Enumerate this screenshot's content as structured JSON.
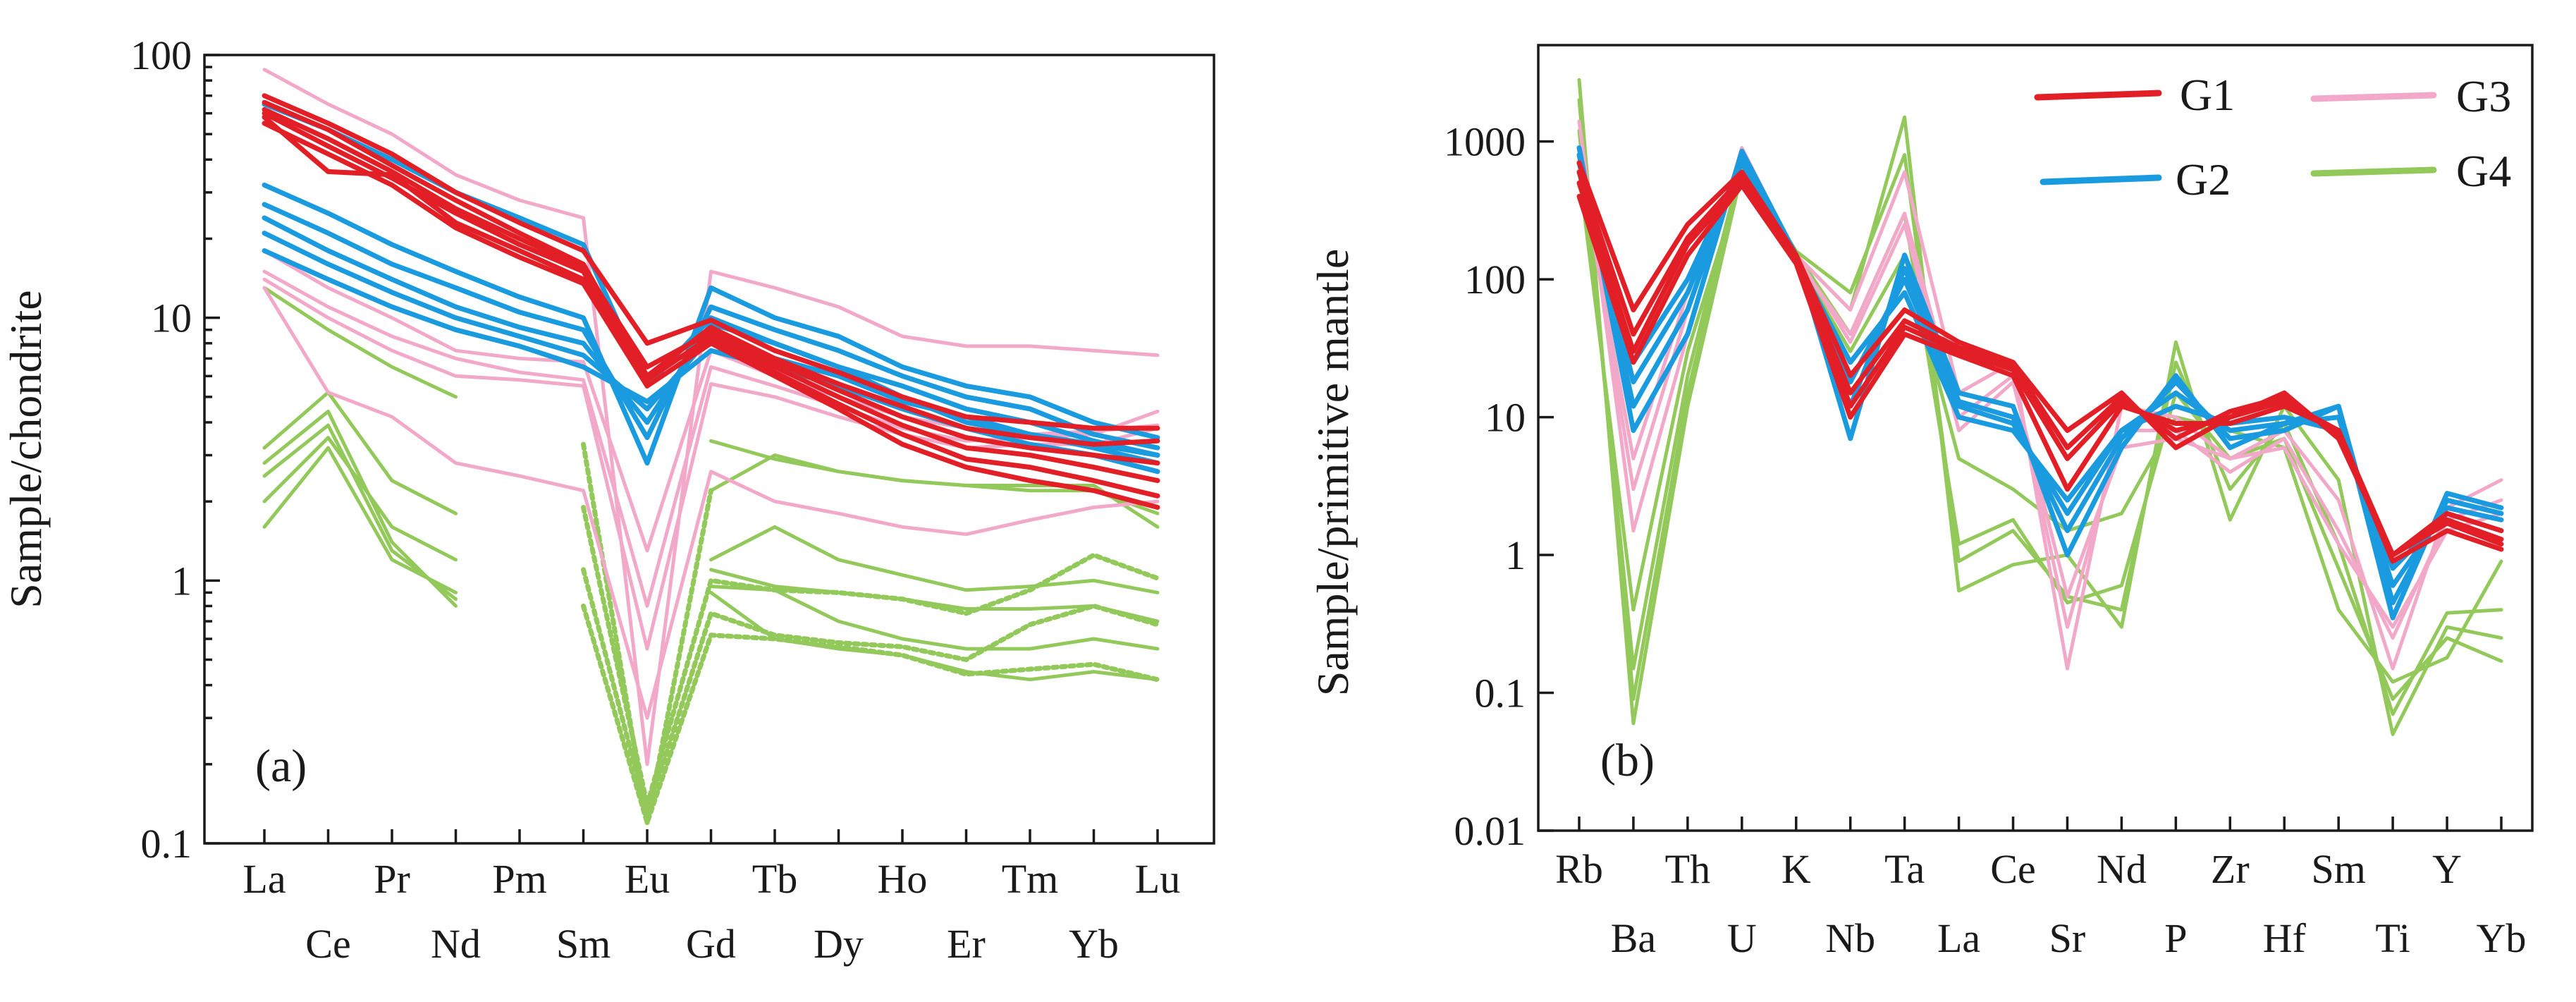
{
  "colors": {
    "G1": "#e21f26",
    "G2": "#1a9be0",
    "G3": "#f2a8c8",
    "G4": "#93c95a",
    "axis": "#1a1a1a"
  },
  "legend": [
    {
      "name": "G1",
      "color": "#e21f26"
    },
    {
      "name": "G2",
      "color": "#1a9be0"
    },
    {
      "name": "G3",
      "color": "#f2a8c8"
    },
    {
      "name": "G4",
      "color": "#93c95a"
    }
  ],
  "chart_data": [
    {
      "type": "line",
      "panel": "(a)",
      "ylabel": "Sample/chondrite",
      "xlabel": "",
      "yscale": "log",
      "ylim": [
        0.1,
        100
      ],
      "yticks": [
        {
          "value": 100,
          "label": "100"
        },
        {
          "value": 10,
          "label": "10"
        },
        {
          "value": 1,
          "label": "1"
        },
        {
          "value": 0.1,
          "label": "0.1"
        }
      ],
      "categories": [
        "La",
        "Ce",
        "Pr",
        "Nd",
        "Pm",
        "Sm",
        "Eu",
        "Gd",
        "Tb",
        "Dy",
        "Ho",
        "Er",
        "Tm",
        "Yb",
        "Lu"
      ],
      "series": [
        {
          "name": "G4",
          "group": "G4",
          "values": [
            13,
            9,
            6.5,
            5.0,
            null,
            3.7,
            null,
            3.4,
            2.9,
            2.6,
            2.4,
            2.3,
            2.3,
            2.3,
            1.6
          ]
        },
        {
          "name": "G4",
          "group": "G4",
          "values": [
            3.2,
            5.2,
            2.4,
            1.8,
            null,
            2.0,
            null,
            2.2,
            3.0,
            2.6,
            2.4,
            2.3,
            2.2,
            2.2,
            1.8
          ]
        },
        {
          "name": "G4",
          "group": "G4",
          "values": [
            2.0,
            3.5,
            1.6,
            1.2,
            null,
            1.15,
            null,
            1.2,
            1.6,
            1.2,
            1.05,
            0.92,
            0.95,
            1.0,
            0.9
          ]
        },
        {
          "name": "G4",
          "group": "G4",
          "values": [
            1.6,
            3.2,
            1.2,
            0.9,
            null,
            0.9,
            null,
            1.1,
            0.95,
            0.9,
            0.85,
            0.78,
            0.78,
            0.8,
            0.7
          ]
        },
        {
          "name": "G4",
          "group": "G4",
          "values": [
            2.8,
            4.4,
            1.4,
            0.8,
            null,
            0.8,
            null,
            0.95,
            0.92,
            0.7,
            0.6,
            0.55,
            0.55,
            0.6,
            0.55
          ]
        },
        {
          "name": "G4",
          "group": "G4",
          "values": [
            2.5,
            3.9,
            1.3,
            0.85,
            null,
            0.85,
            null,
            0.9,
            0.6,
            0.55,
            0.52,
            0.45,
            0.42,
            0.45,
            0.42
          ]
        },
        {
          "name": "G4",
          "group": "G4",
          "dashed": true,
          "values": [
            null,
            null,
            null,
            null,
            null,
            3.3,
            0.12,
            2.2,
            null,
            null,
            null,
            null,
            null,
            null,
            null
          ]
        },
        {
          "name": "G4",
          "group": "G4",
          "dashed": true,
          "values": [
            null,
            null,
            null,
            null,
            null,
            1.9,
            0.14,
            1.0,
            0.92,
            0.9,
            0.85,
            0.75,
            0.92,
            1.25,
            1.02
          ]
        },
        {
          "name": "G4",
          "group": "G4",
          "dashed": true,
          "values": [
            null,
            null,
            null,
            null,
            null,
            1.1,
            0.13,
            0.75,
            0.62,
            0.58,
            0.56,
            0.5,
            0.68,
            0.8,
            0.68
          ]
        },
        {
          "name": "G4",
          "group": "G4",
          "dashed": true,
          "values": [
            null,
            null,
            null,
            null,
            null,
            0.8,
            0.12,
            0.62,
            0.6,
            0.56,
            0.52,
            0.44,
            0.46,
            0.48,
            0.42
          ]
        },
        {
          "name": "G3",
          "group": "G3",
          "values": [
            88,
            65,
            50,
            35,
            28,
            24,
            0.2,
            15,
            13,
            11,
            8.5,
            7.8,
            7.8,
            7.5,
            7.2
          ]
        },
        {
          "name": "G3",
          "group": "G3",
          "values": [
            18,
            13,
            10,
            7.5,
            7.0,
            6.8,
            1.3,
            7.5,
            6.0,
            5.0,
            4.2,
            3.8,
            3.6,
            3.7,
            3.9
          ]
        },
        {
          "name": "G3",
          "group": "G3",
          "values": [
            15,
            11,
            8.5,
            7.0,
            6.2,
            5.8,
            0.8,
            6.5,
            5.5,
            4.6,
            3.8,
            3.4,
            3.5,
            3.6,
            4.4
          ]
        },
        {
          "name": "G3",
          "group": "G3",
          "values": [
            14,
            10,
            7.5,
            6.0,
            5.8,
            5.5,
            0.55,
            5.6,
            5.0,
            4.2,
            3.6,
            3.2,
            3.3,
            3.3,
            3.8
          ]
        },
        {
          "name": "G3",
          "group": "G3",
          "values": [
            13,
            5.2,
            4.2,
            2.8,
            2.5,
            2.2,
            0.3,
            2.6,
            2.0,
            1.8,
            1.6,
            1.5,
            1.7,
            1.9,
            2.0
          ]
        },
        {
          "name": "G2",
          "group": "G2",
          "values": [
            32,
            25,
            19,
            15,
            12,
            10,
            2.8,
            13,
            10,
            8.5,
            6.5,
            5.5,
            5.0,
            4.0,
            3.5
          ]
        },
        {
          "name": "G2",
          "group": "G2",
          "values": [
            27,
            21,
            16,
            13,
            10.5,
            9.0,
            3.5,
            11,
            9,
            7.5,
            6.0,
            5.0,
            4.5,
            3.6,
            3.2
          ]
        },
        {
          "name": "G2",
          "group": "G2",
          "values": [
            24,
            18,
            14,
            11,
            9.2,
            8.0,
            4.0,
            9.5,
            8,
            6.5,
            5.5,
            4.5,
            4.0,
            3.4,
            3.0
          ]
        },
        {
          "name": "G2",
          "group": "G2",
          "values": [
            21,
            16,
            12.5,
            10,
            8.5,
            7.2,
            4.5,
            8.5,
            7,
            6.0,
            4.8,
            4.2,
            3.6,
            3.2,
            2.8
          ]
        },
        {
          "name": "G2",
          "group": "G2",
          "values": [
            18,
            14,
            11,
            9,
            7.8,
            6.5,
            4.8,
            7.5,
            6.5,
            5.5,
            4.5,
            3.8,
            3.3,
            3.0,
            2.6
          ]
        },
        {
          "name": "G2",
          "group": "G2",
          "values": [
            65,
            52,
            40,
            30,
            24,
            19,
            5.5,
            10,
            8,
            6.5,
            5.0,
            4.0,
            3.6,
            3.3,
            3.0
          ]
        },
        {
          "name": "G1",
          "group": "G1",
          "values": [
            70,
            55,
            42,
            30,
            23,
            18,
            8.0,
            9.8,
            7.5,
            6.2,
            5.0,
            4.2,
            4.0,
            3.8,
            3.8
          ]
        },
        {
          "name": "G1",
          "group": "G1",
          "values": [
            66,
            52,
            38,
            28,
            21,
            16,
            6.0,
            9.2,
            7.0,
            5.6,
            4.6,
            3.8,
            3.5,
            3.3,
            3.4
          ]
        },
        {
          "name": "G1",
          "group": "G1",
          "values": [
            62,
            48,
            36,
            26,
            20,
            15.5,
            6.5,
            8.8,
            6.8,
            5.3,
            4.2,
            3.5,
            3.2,
            3.0,
            2.8
          ]
        },
        {
          "name": "G1",
          "group": "G1",
          "values": [
            60,
            45,
            34,
            25,
            19,
            15,
            5.8,
            8.5,
            6.5,
            5.0,
            3.9,
            3.2,
            3.0,
            2.7,
            2.4
          ]
        },
        {
          "name": "G1",
          "group": "G1",
          "values": [
            58,
            36,
            35,
            23,
            18,
            14,
            6.0,
            8.2,
            6.2,
            4.7,
            3.6,
            2.9,
            2.7,
            2.4,
            2.1
          ]
        },
        {
          "name": "G1",
          "group": "G1",
          "values": [
            55,
            42,
            32,
            22,
            17,
            13.5,
            5.5,
            8.0,
            6.0,
            4.5,
            3.3,
            2.7,
            2.4,
            2.2,
            1.9
          ]
        }
      ]
    },
    {
      "type": "line",
      "panel": "(b)",
      "ylabel": "Sample/primitive mantle",
      "xlabel": "",
      "yscale": "log",
      "ylim": [
        0.01,
        5000
      ],
      "yticks": [
        {
          "value": 1000,
          "label": "1000"
        },
        {
          "value": 100,
          "label": "100"
        },
        {
          "value": 10,
          "label": "10"
        },
        {
          "value": 1,
          "label": "1"
        },
        {
          "value": 0.1,
          "label": "0.1"
        },
        {
          "value": 0.01,
          "label": "0.01"
        }
      ],
      "categories": [
        "Rb",
        "Ba",
        "Th",
        "U",
        "K",
        "Nb",
        "Ta",
        "La",
        "Ce",
        "Sr",
        "Nd",
        "P",
        "Zr",
        "Hf",
        "Sm",
        "Ti",
        "Y",
        "Yb"
      ],
      "series": [
        {
          "name": "G4",
          "group": "G4",
          "values": [
            2800,
            0.06,
            12,
            600,
            150,
            60,
            1500,
            0.55,
            0.85,
            1.0,
            0.3,
            35,
            1.8,
            12,
            3.5,
            0.05,
            0.3,
            0.25
          ]
        },
        {
          "name": "G4",
          "group": "G4",
          "values": [
            2000,
            0.09,
            15,
            650,
            160,
            80,
            800,
            0.9,
            1.5,
            0.5,
            0.4,
            25,
            3,
            9,
            1.2,
            0.07,
            0.38,
            0.4
          ]
        },
        {
          "name": "G4",
          "group": "G4",
          "values": [
            1200,
            0.15,
            20,
            700,
            155,
            40,
            300,
            1.2,
            1.8,
            0.45,
            0.6,
            15,
            5,
            7,
            0.8,
            0.09,
            0.25,
            0.17
          ]
        },
        {
          "name": "G4",
          "group": "G4",
          "values": [
            600,
            0.4,
            30,
            550,
            140,
            30,
            150,
            5,
            3,
            1.5,
            2,
            10,
            8,
            6,
            0.4,
            0.12,
            0.18,
            0.9
          ]
        },
        {
          "name": "G3",
          "group": "G3",
          "values": [
            1400,
            1.5,
            40,
            900,
            150,
            60,
            600,
            15,
            25,
            0.15,
            12,
            10,
            5,
            8,
            2.5,
            0.15,
            2.2,
            3.5
          ]
        },
        {
          "name": "G3",
          "group": "G3",
          "values": [
            900,
            3,
            60,
            800,
            140,
            40,
            300,
            10,
            20,
            0.3,
            8,
            8,
            4,
            7,
            1.5,
            0.25,
            1.8,
            2.5
          ]
        },
        {
          "name": "G3",
          "group": "G3",
          "values": [
            700,
            5,
            80,
            750,
            150,
            35,
            250,
            8,
            18,
            0.5,
            6,
            7,
            5,
            6,
            1.2,
            0.3,
            1.5,
            2
          ]
        },
        {
          "name": "G2",
          "group": "G2",
          "values": [
            900,
            8,
            40,
            850,
            150,
            7,
            150,
            15,
            12,
            1,
            6,
            20,
            6,
            9,
            12,
            0.35,
            2.8,
            2.2
          ]
        },
        {
          "name": "G2",
          "group": "G2",
          "values": [
            800,
            12,
            60,
            800,
            140,
            12,
            120,
            13,
            10,
            1.5,
            7,
            18,
            7,
            8,
            12,
            0.45,
            2.5,
            2
          ]
        },
        {
          "name": "G2",
          "group": "G2",
          "values": [
            700,
            18,
            80,
            750,
            145,
            18,
            100,
            12,
            9,
            2,
            8,
            15,
            8,
            9,
            10,
            0.6,
            2.2,
            1.8
          ]
        },
        {
          "name": "G2",
          "group": "G2",
          "values": [
            600,
            25,
            100,
            700,
            140,
            25,
            80,
            10,
            8,
            2.5,
            8,
            12,
            9,
            10,
            8,
            0.8,
            2.0,
            1.5
          ]
        },
        {
          "name": "G1",
          "group": "G1",
          "values": [
            700,
            60,
            250,
            600,
            150,
            20,
            60,
            35,
            25,
            8,
            15,
            6,
            10,
            15,
            7,
            1.0,
            2.0,
            1.5
          ]
        },
        {
          "name": "G1",
          "group": "G1",
          "values": [
            600,
            40,
            200,
            550,
            140,
            15,
            50,
            32,
            24,
            6,
            14,
            7,
            11,
            14,
            7.5,
            1.0,
            1.8,
            1.3
          ]
        },
        {
          "name": "G1",
          "group": "G1",
          "values": [
            500,
            30,
            180,
            500,
            135,
            12,
            45,
            30,
            22,
            5,
            13,
            8,
            10,
            13,
            8,
            1.0,
            1.7,
            1.2
          ]
        },
        {
          "name": "G1",
          "group": "G1",
          "values": [
            400,
            25,
            150,
            480,
            130,
            10,
            40,
            28,
            20,
            3,
            12,
            9,
            9,
            12,
            8,
            0.9,
            1.5,
            1.1
          ]
        }
      ]
    }
  ]
}
